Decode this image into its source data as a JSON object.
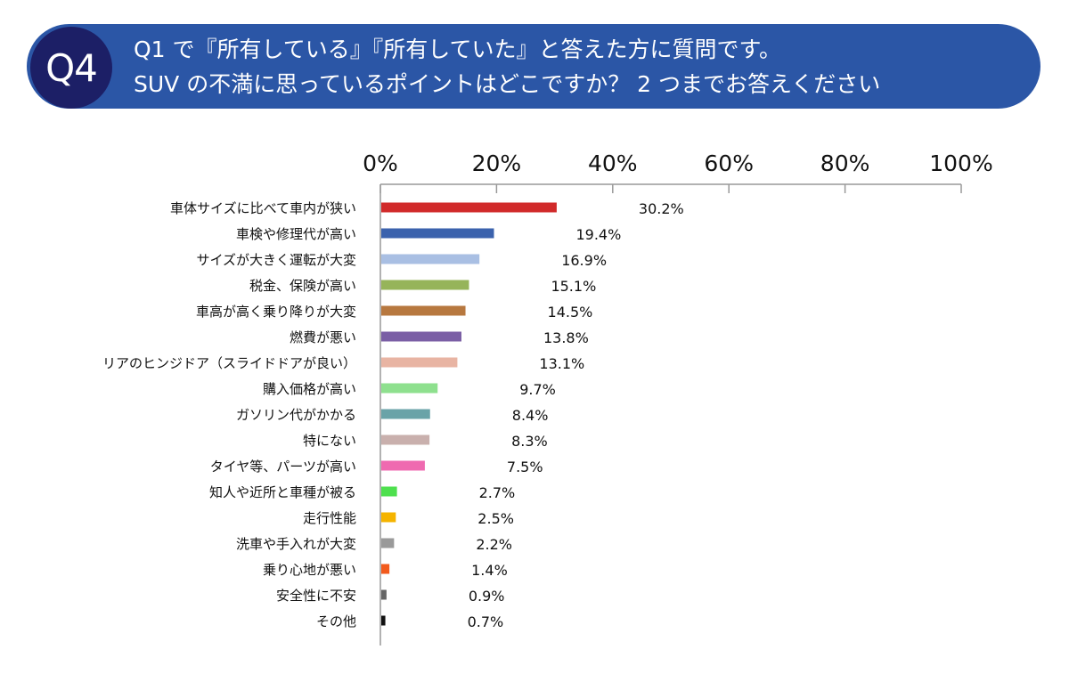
{
  "header": {
    "badge": "Q4",
    "line1": "Q1 で『所有している』『所有していた』と答えた方に質問です。",
    "line2": "SUV の不満に思っているポイントはどこですか？ 2 つまでお答えください"
  },
  "chart_data": {
    "type": "bar",
    "orientation": "horizontal",
    "title": "",
    "xlabel": "",
    "ylabel": "",
    "xlim": [
      0,
      100
    ],
    "x_ticks": [
      "0%",
      "20%",
      "40%",
      "60%",
      "80%",
      "100%"
    ],
    "grid": false,
    "categories": [
      "車体サイズに比べて車内が狭い",
      "車検や修理代が高い",
      "サイズが大きく運転が大変",
      "税金、保険が高い",
      "車高が高く乗り降りが大変",
      "燃費が悪い",
      "リアのヒンジドア（スライドドアが良い）",
      "購入価格が高い",
      "ガソリン代がかかる",
      "特にない",
      "タイヤ等、パーツが高い",
      "知人や近所と車種が被る",
      "走行性能",
      "洗車や手入れが大変",
      "乗り心地が悪い",
      "安全性に不安",
      "その他"
    ],
    "values": [
      30.2,
      19.4,
      16.9,
      15.1,
      14.5,
      13.8,
      13.1,
      9.7,
      8.4,
      8.3,
      7.5,
      2.7,
      2.5,
      2.2,
      1.4,
      0.9,
      0.7
    ],
    "value_labels": [
      "30.2%",
      "19.4%",
      "16.9%",
      "15.1%",
      "14.5%",
      "13.8%",
      "13.1%",
      "9.7%",
      "8.4%",
      "8.3%",
      "7.5%",
      "2.7%",
      "2.5%",
      "2.2%",
      "1.4%",
      "0.9%",
      "0.7%"
    ],
    "colors": [
      "#d12a2a",
      "#3b62ad",
      "#a9bfe3",
      "#96b45a",
      "#b7783f",
      "#7a5ea5",
      "#e8b4a3",
      "#8ee08e",
      "#6aa3a8",
      "#c9b0ad",
      "#ef6ab0",
      "#4ee04e",
      "#f5b400",
      "#9a9a9a",
      "#f25a1c",
      "#666666",
      "#111111"
    ]
  }
}
